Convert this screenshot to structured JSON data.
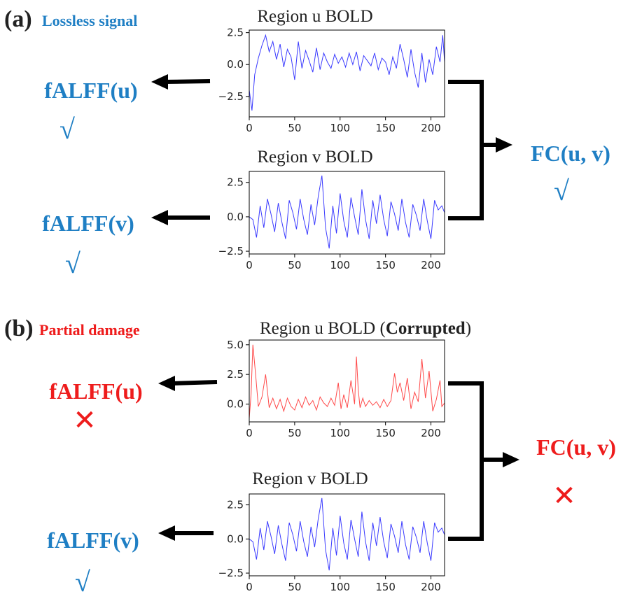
{
  "colors": {
    "good": "#1f7fc4",
    "bad": "#ee1c1c",
    "signal_clean": "#3b3bff",
    "signal_corrupted": "#ff4a4a",
    "text": "#222222"
  },
  "panel_a": {
    "label": "(a)",
    "subtitle": "Lossless signal",
    "status": "good",
    "plot_u_title": "Region u BOLD",
    "plot_v_title": "Region v BOLD",
    "fc_label": "FC(u, v)",
    "fc_mark": "√",
    "fc_mark_icon": "check-icon",
    "falff_u": {
      "label": "fALFF(u)",
      "mark": "√",
      "icon": "check-icon"
    },
    "falff_v": {
      "label": "fALFF(v)",
      "mark": "√",
      "icon": "check-icon"
    }
  },
  "panel_b": {
    "label": "(b)",
    "subtitle": "Partial damage",
    "status": "bad",
    "plot_u_title_prefix": "Region u BOLD (",
    "plot_u_title_bold": "Corrupted",
    "plot_u_title_suffix": ")",
    "plot_v_title": "Region v BOLD",
    "fc_label": "FC(u, v)",
    "fc_mark": "✕",
    "fc_mark_icon": "cross-icon",
    "falff_u": {
      "label": "fALFF(u)",
      "mark": "✕",
      "icon": "cross-icon"
    },
    "falff_v": {
      "label": "fALFF(v)",
      "mark": "√",
      "icon": "check-icon"
    }
  },
  "chart_data": [
    {
      "type": "line",
      "title": "Region u BOLD",
      "panel": "a",
      "xlim": [
        0,
        215
      ],
      "ylim": [
        -4.1,
        2.7
      ],
      "xticks": [
        0,
        50,
        100,
        150,
        200
      ],
      "yticks": [
        2.5,
        0.0,
        -2.5
      ],
      "series": [
        {
          "x": [
            0,
            3,
            6,
            10,
            14,
            18,
            22,
            26,
            30,
            34,
            38,
            42,
            46,
            50,
            54,
            58,
            62,
            66,
            70,
            74,
            78,
            82,
            86,
            90,
            94,
            98,
            102,
            106,
            110,
            114,
            118,
            122,
            126,
            130,
            134,
            138,
            142,
            146,
            150,
            154,
            158,
            162,
            166,
            170,
            174,
            178,
            182,
            186,
            190,
            194,
            198,
            202,
            206,
            210,
            213,
            215
          ],
          "y": [
            -2.0,
            -3.6,
            -0.8,
            0.5,
            1.5,
            2.3,
            1.0,
            1.8,
            0.4,
            1.6,
            -0.2,
            1.2,
            0.6,
            -1.2,
            1.8,
            -0.3,
            1.1,
            0.3,
            -0.6,
            1.3,
            -0.4,
            0.9,
            0.2,
            -0.3,
            0.8,
            0.1,
            0.6,
            -0.2,
            0.9,
            0.0,
            1.0,
            -0.5,
            0.7,
            0.3,
            -0.1,
            0.9,
            -0.4,
            0.5,
            0.2,
            -0.8,
            0.6,
            -0.3,
            1.6,
            0.4,
            -1.0,
            1.2,
            -0.6,
            -1.8,
            0.9,
            -1.4,
            0.4,
            -0.8,
            1.4,
            0.2,
            2.3,
            0.2
          ]
        }
      ]
    },
    {
      "type": "line",
      "title": "Region v BOLD",
      "panel": "a",
      "xlim": [
        0,
        215
      ],
      "ylim": [
        -2.7,
        3.3
      ],
      "xticks": [
        0,
        50,
        100,
        150,
        200
      ],
      "yticks": [
        2.5,
        0.0,
        -2.5
      ],
      "series": [
        {
          "x": [
            0,
            4,
            8,
            12,
            16,
            20,
            24,
            28,
            32,
            36,
            40,
            44,
            48,
            52,
            56,
            60,
            64,
            68,
            72,
            76,
            80,
            84,
            88,
            92,
            96,
            100,
            104,
            108,
            112,
            116,
            120,
            124,
            128,
            132,
            136,
            140,
            144,
            148,
            152,
            156,
            160,
            164,
            168,
            172,
            176,
            180,
            184,
            188,
            192,
            196,
            200,
            204,
            208,
            212,
            215
          ],
          "y": [
            0.0,
            -0.2,
            -1.5,
            0.8,
            -0.8,
            1.3,
            0.2,
            -1.1,
            1.0,
            -0.4,
            -1.6,
            1.2,
            0.3,
            -0.9,
            1.3,
            -0.2,
            -1.3,
            0.9,
            -0.6,
            1.5,
            3.0,
            -0.8,
            -2.3,
            0.8,
            -1.2,
            1.7,
            -0.3,
            -1.5,
            1.4,
            0.0,
            -1.3,
            2.0,
            -0.2,
            -1.6,
            1.2,
            -0.5,
            1.6,
            -0.2,
            -1.4,
            1.1,
            0.2,
            -1.0,
            1.3,
            -0.4,
            -1.5,
            0.9,
            0.1,
            -1.0,
            1.3,
            -0.3,
            -1.6,
            1.2,
            0.5,
            0.8,
            0.3
          ]
        }
      ]
    },
    {
      "type": "line",
      "title": "Region u BOLD (Corrupted)",
      "panel": "b",
      "xlim": [
        0,
        215
      ],
      "ylim": [
        -1.5,
        5.4
      ],
      "xticks": [
        0,
        50,
        100,
        150,
        200
      ],
      "yticks": [
        5.0,
        2.5,
        0.0
      ],
      "series": [
        {
          "x": [
            0,
            2,
            4,
            7,
            10,
            14,
            18,
            22,
            26,
            30,
            34,
            38,
            42,
            46,
            50,
            54,
            58,
            62,
            66,
            70,
            74,
            78,
            82,
            86,
            90,
            94,
            98,
            101,
            104,
            108,
            112,
            116,
            118,
            120,
            122,
            125,
            128,
            132,
            136,
            140,
            144,
            148,
            152,
            156,
            160,
            163,
            166,
            170,
            174,
            178,
            182,
            186,
            190,
            194,
            198,
            202,
            206,
            210,
            212,
            215
          ],
          "y": [
            -1.2,
            0.8,
            5.0,
            2.5,
            -0.2,
            0.6,
            2.5,
            -0.3,
            0.5,
            -0.4,
            0.4,
            -0.6,
            0.5,
            -0.2,
            -0.5,
            0.4,
            -0.3,
            0.6,
            -0.1,
            0.3,
            -0.5,
            0.6,
            0.1,
            -0.2,
            0.5,
            -0.1,
            1.8,
            -0.4,
            0.8,
            -0.3,
            2.0,
            0.0,
            4.0,
            1.2,
            -0.3,
            0.5,
            -0.2,
            0.3,
            -0.1,
            0.2,
            -0.3,
            0.4,
            -0.2,
            0.3,
            2.6,
            1.0,
            1.8,
            0.3,
            2.2,
            -0.4,
            1.0,
            0.2,
            3.8,
            0.5,
            2.8,
            -0.6,
            0.4,
            2.0,
            -0.2,
            0.1
          ]
        }
      ]
    },
    {
      "type": "line",
      "title": "Region v BOLD",
      "panel": "b",
      "xlim": [
        0,
        215
      ],
      "ylim": [
        -2.7,
        3.3
      ],
      "xticks": [
        0,
        50,
        100,
        150,
        200
      ],
      "yticks": [
        2.5,
        0.0,
        -2.5
      ],
      "series": [
        {
          "x": [
            0,
            4,
            8,
            12,
            16,
            20,
            24,
            28,
            32,
            36,
            40,
            44,
            48,
            52,
            56,
            60,
            64,
            68,
            72,
            76,
            80,
            84,
            88,
            92,
            96,
            100,
            104,
            108,
            112,
            116,
            120,
            124,
            128,
            132,
            136,
            140,
            144,
            148,
            152,
            156,
            160,
            164,
            168,
            172,
            176,
            180,
            184,
            188,
            192,
            196,
            200,
            204,
            208,
            212,
            215
          ],
          "y": [
            0.0,
            -0.2,
            -1.5,
            0.8,
            -0.8,
            1.3,
            0.2,
            -1.1,
            1.0,
            -0.4,
            -1.6,
            1.2,
            0.3,
            -0.9,
            1.3,
            -0.2,
            -1.3,
            0.9,
            -0.6,
            1.5,
            3.0,
            -0.8,
            -2.3,
            0.8,
            -1.2,
            1.7,
            -0.3,
            -1.5,
            1.4,
            0.0,
            -1.3,
            2.0,
            -0.2,
            -1.6,
            1.2,
            -0.5,
            1.6,
            -0.2,
            -1.4,
            1.1,
            0.2,
            -1.0,
            1.3,
            -0.4,
            -1.5,
            0.9,
            0.1,
            -1.0,
            1.3,
            -0.3,
            -1.6,
            1.2,
            0.5,
            0.8,
            0.3
          ]
        }
      ]
    }
  ]
}
